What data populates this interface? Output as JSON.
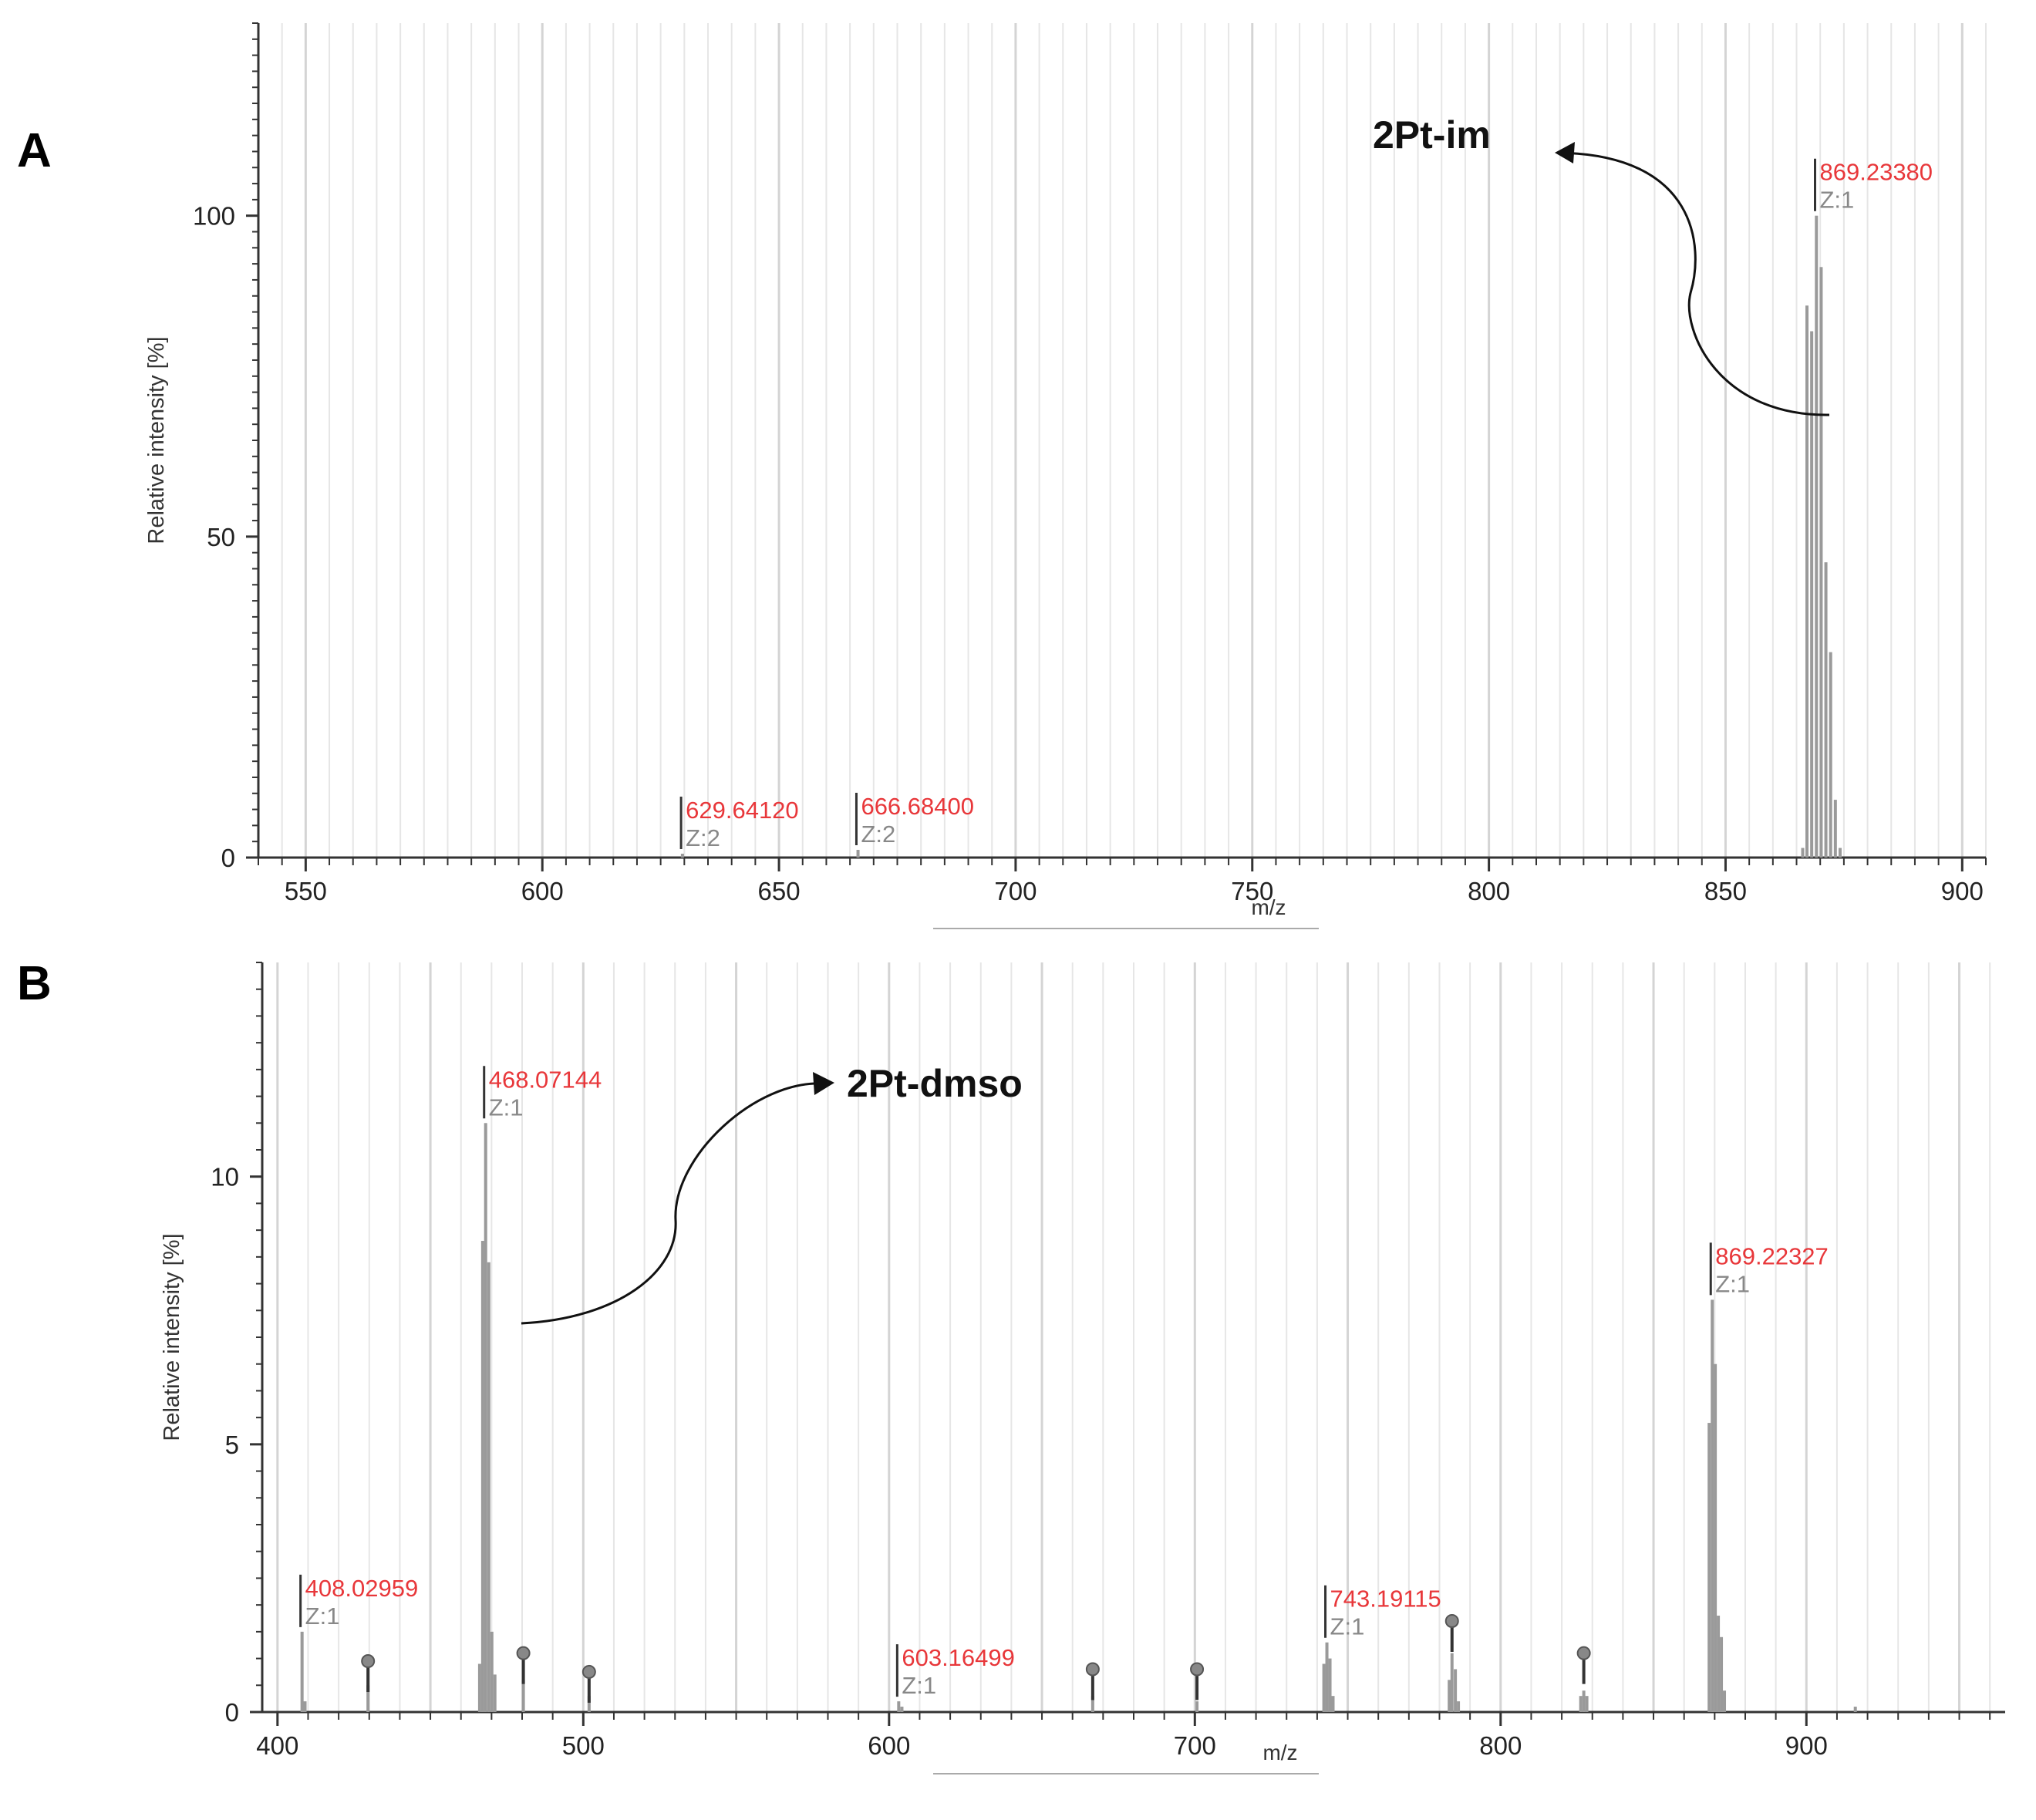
{
  "chart_data": [
    {
      "panel": "A",
      "type": "bar",
      "xlabel": "m/z",
      "ylabel": "Relative intensity [%]",
      "xlim": [
        540,
        905
      ],
      "ylim": [
        0,
        130
      ],
      "xticks": [
        550,
        600,
        650,
        700,
        750,
        800,
        850,
        900
      ],
      "yticks": [
        0,
        50,
        100
      ],
      "grid": "vertical",
      "peaks_mz": [
        866.3,
        867.2,
        868.2,
        869.2,
        870.2,
        871.2,
        872.2,
        873.2,
        874.2,
        629.6,
        666.7
      ],
      "peaks_intensity": [
        1.5,
        86,
        82,
        100,
        92,
        46,
        32,
        9,
        1.5,
        0.6,
        1.2
      ],
      "annotations": [
        {
          "mz": 869.2338,
          "label": "869.23380",
          "charge": "Z:1",
          "intensity": 100
        },
        {
          "mz": 629.6412,
          "label": "629.64120",
          "charge": "Z:2",
          "intensity": 0.6
        },
        {
          "mz": 666.684,
          "label": "666.68400",
          "charge": "Z:2",
          "intensity": 1.2
        }
      ],
      "callout": {
        "label": "2Pt-im",
        "target_mz": 869.2338
      }
    },
    {
      "panel": "B",
      "type": "bar",
      "xlabel": "m/z",
      "ylabel": "Relative intensity [%]",
      "xlim": [
        395,
        965
      ],
      "ylim": [
        0,
        14
      ],
      "xticks": [
        400,
        500,
        600,
        700,
        800,
        900
      ],
      "yticks": [
        0,
        5,
        10
      ],
      "grid": "vertical",
      "peaks_mz": [
        408.03,
        409.0,
        466.1,
        467.1,
        468.07,
        469.1,
        470.1,
        471.1,
        429.6,
        480.4,
        501.9,
        603.16,
        604.2,
        666.6,
        700.7,
        742.2,
        743.19,
        744.2,
        745.2,
        783.2,
        784.1,
        785.2,
        786.2,
        826.2,
        827.2,
        828.2,
        868.2,
        869.22,
        870.2,
        871.2,
        872.2,
        873.2,
        916.0
      ],
      "peaks_intensity": [
        1.5,
        0.2,
        0.9,
        8.8,
        11,
        8.4,
        1.5,
        0.7,
        0.5,
        0.6,
        0.3,
        0.2,
        0.1,
        0.3,
        0.2,
        0.9,
        1.3,
        1.0,
        0.3,
        0.6,
        1.1,
        0.8,
        0.2,
        0.3,
        0.4,
        0.3,
        5.4,
        7.7,
        6.5,
        1.8,
        1.4,
        0.4,
        0.1
      ],
      "annotations": [
        {
          "mz": 408.02959,
          "label": "408.02959",
          "charge": "Z:1",
          "intensity": 1.5
        },
        {
          "mz": 468.07144,
          "label": "468.07144",
          "charge": "Z:1",
          "intensity": 11
        },
        {
          "mz": 603.16499,
          "label": "603.16499",
          "charge": "Z:1",
          "intensity": 0.2
        },
        {
          "mz": 743.19115,
          "label": "743.19115",
          "charge": "Z:1",
          "intensity": 1.3
        },
        {
          "mz": 869.22327,
          "label": "869.22327",
          "charge": "Z:1",
          "intensity": 7.7
        }
      ],
      "markers": [
        {
          "mz": 429.6,
          "intensity": 0.95
        },
        {
          "mz": 480.4,
          "intensity": 1.1
        },
        {
          "mz": 501.9,
          "intensity": 0.75
        },
        {
          "mz": 666.6,
          "intensity": 0.8
        },
        {
          "mz": 700.7,
          "intensity": 0.8
        },
        {
          "mz": 784.1,
          "intensity": 1.7
        },
        {
          "mz": 827.2,
          "intensity": 1.1
        }
      ],
      "callout": {
        "label": "2Pt-dmso",
        "target_mz": 468.07144
      }
    }
  ]
}
